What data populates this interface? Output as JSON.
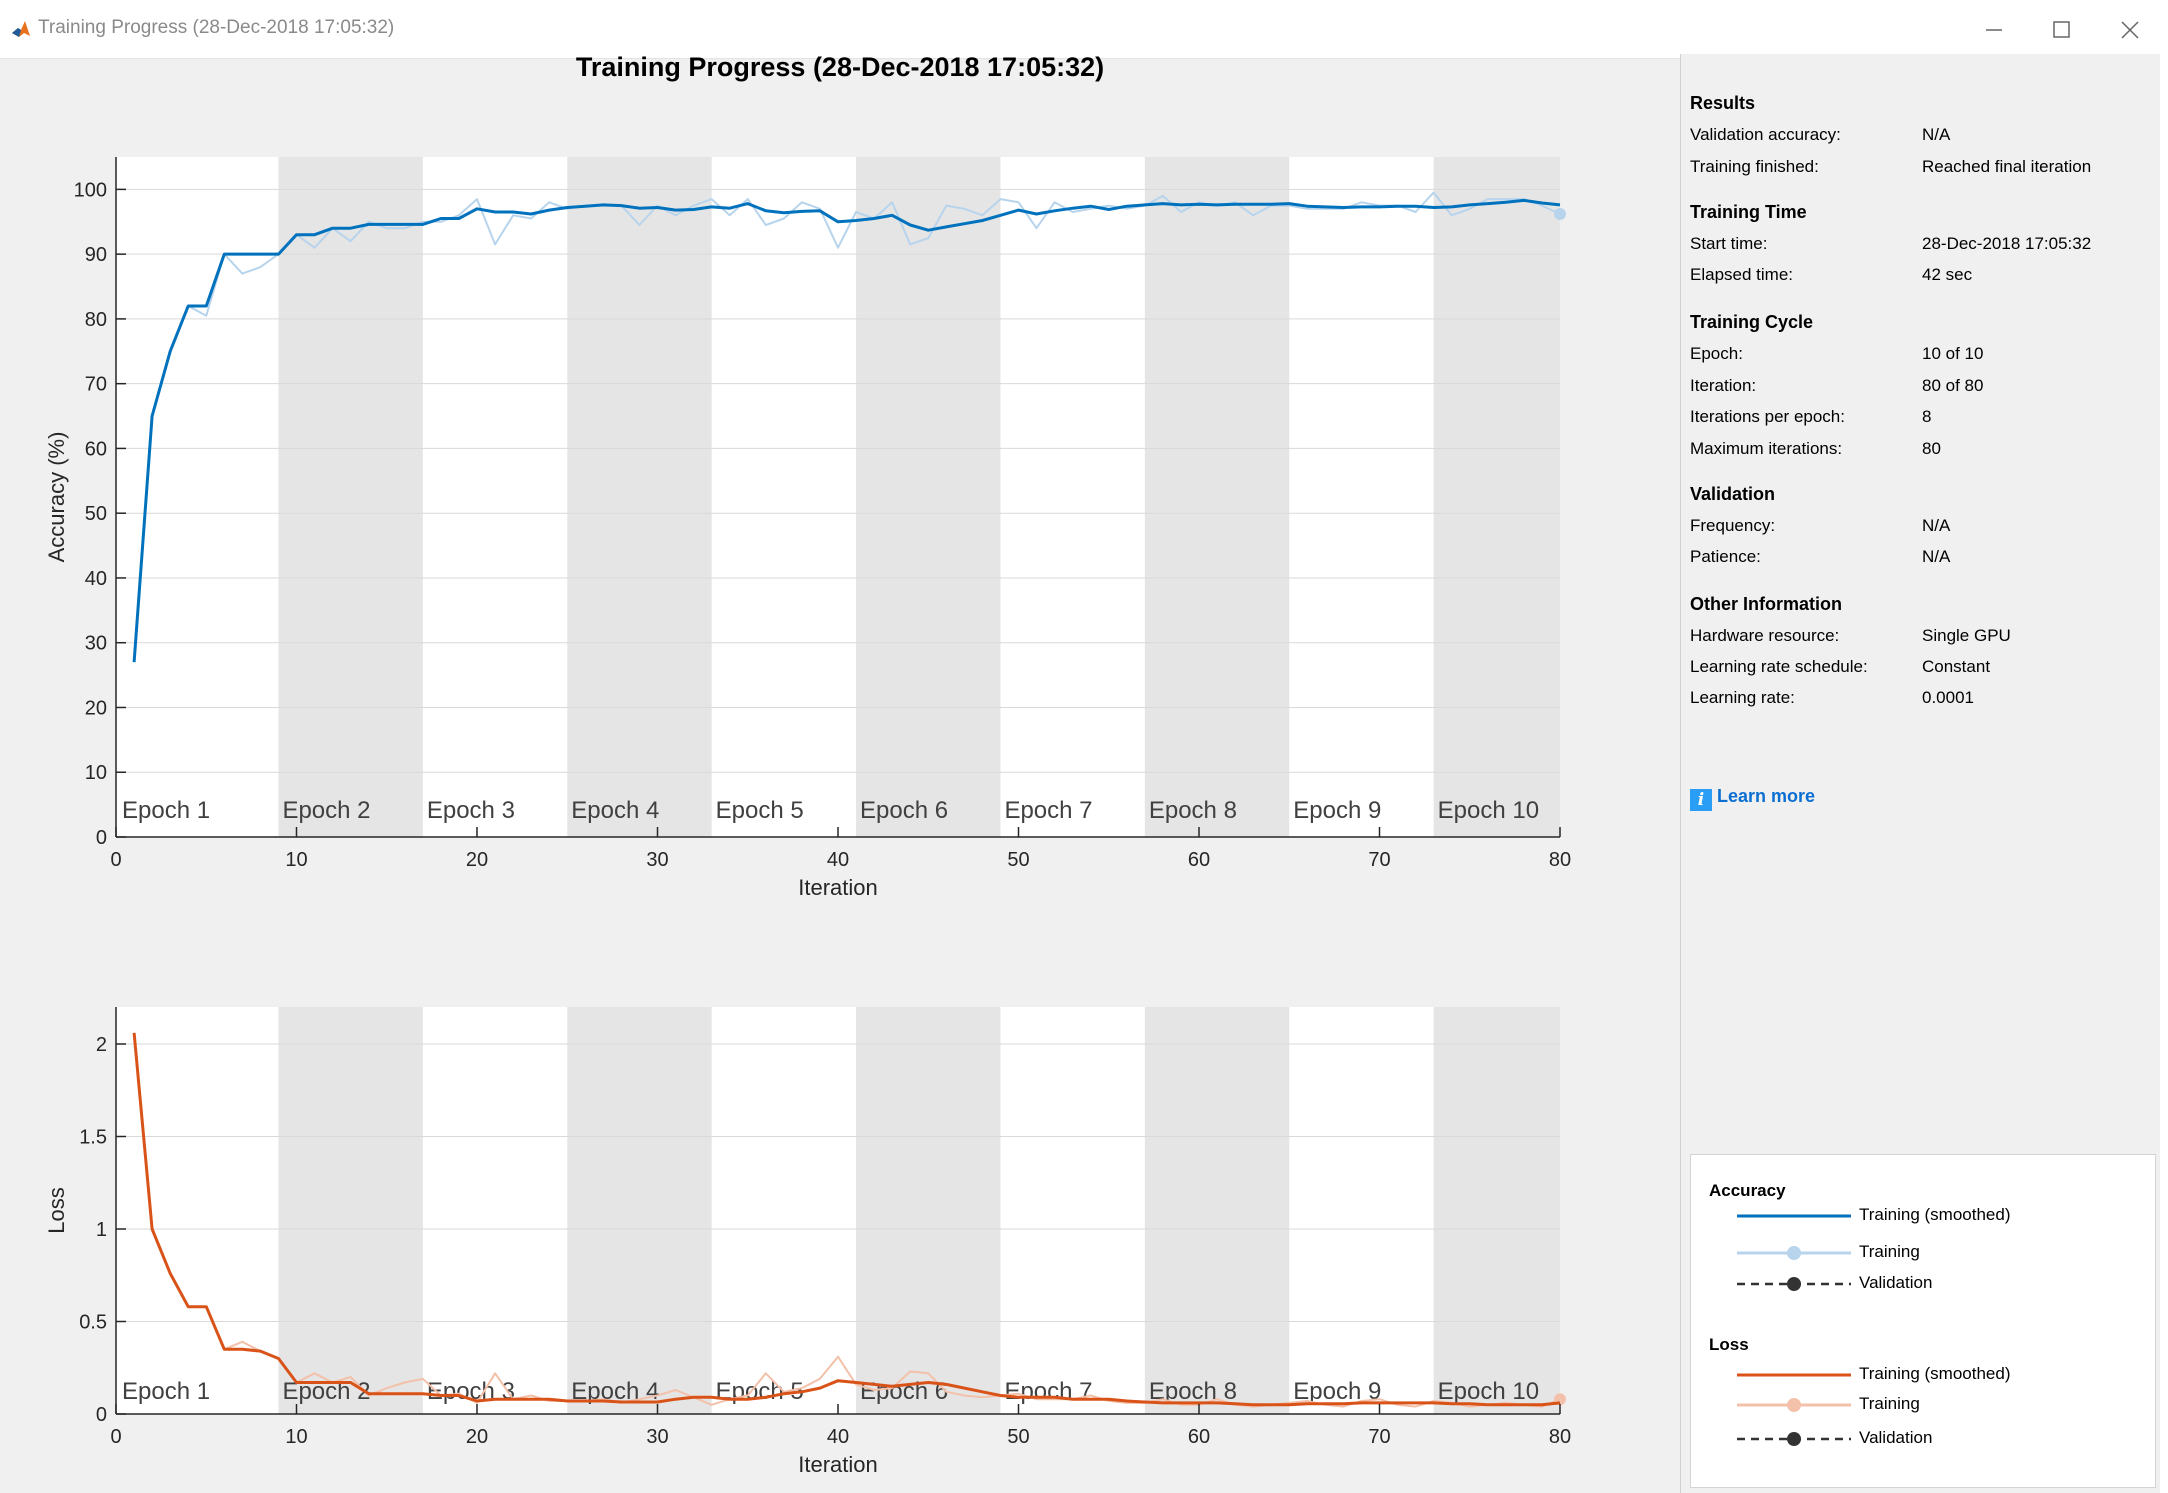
{
  "window": {
    "title": "Training Progress (28-Dec-2018 17:05:32)"
  },
  "plot_title": "Training Progress (28-Dec-2018 17:05:32)",
  "colors": {
    "accuracy_smoothed": "#0072bd",
    "accuracy_raw": "#b7d4ec",
    "loss_smoothed": "#d95319",
    "loss_raw": "#f3c1aa",
    "epoch_shade": "#e5e5e5",
    "link": "#0b6fd2"
  },
  "panel": {
    "results": {
      "title": "Results",
      "rows": [
        {
          "label": "Validation accuracy:",
          "value": "N/A"
        },
        {
          "label": "Training finished:",
          "value": "Reached final iteration"
        }
      ]
    },
    "training_time": {
      "title": "Training Time",
      "rows": [
        {
          "label": "Start time:",
          "value": "28-Dec-2018 17:05:32"
        },
        {
          "label": "Elapsed time:",
          "value": "42 sec"
        }
      ]
    },
    "training_cycle": {
      "title": "Training Cycle",
      "rows": [
        {
          "label": "Epoch:",
          "value": "10 of 10"
        },
        {
          "label": "Iteration:",
          "value": "80 of 80"
        },
        {
          "label": "Iterations per epoch:",
          "value": "8"
        },
        {
          "label": "Maximum iterations:",
          "value": "80"
        }
      ]
    },
    "validation": {
      "title": "Validation",
      "rows": [
        {
          "label": "Frequency:",
          "value": "N/A"
        },
        {
          "label": "Patience:",
          "value": "N/A"
        }
      ]
    },
    "other": {
      "title": "Other Information",
      "rows": [
        {
          "label": "Hardware resource:",
          "value": "Single GPU"
        },
        {
          "label": "Learning rate schedule:",
          "value": "Constant"
        },
        {
          "label": "Learning rate:",
          "value": "0.0001"
        }
      ]
    },
    "learn_more": "Learn more"
  },
  "legend": {
    "accuracy": {
      "title": "Accuracy",
      "items": [
        "Training (smoothed)",
        "Training",
        "Validation"
      ]
    },
    "loss": {
      "title": "Loss",
      "items": [
        "Training (smoothed)",
        "Training",
        "Validation"
      ]
    }
  },
  "chart_data": [
    {
      "type": "line",
      "title": "",
      "xlabel": "Iteration",
      "ylabel": "Accuracy (%)",
      "xlim": [
        0,
        80
      ],
      "ylim": [
        0,
        105
      ],
      "xticks": [
        0,
        10,
        20,
        30,
        40,
        50,
        60,
        70,
        80
      ],
      "yticks": [
        0,
        10,
        20,
        30,
        40,
        50,
        60,
        70,
        80,
        90,
        100
      ],
      "epochs": [
        {
          "label": "Epoch 1",
          "start": 0,
          "end": 9,
          "shaded": false
        },
        {
          "label": "Epoch 2",
          "start": 9,
          "end": 17,
          "shaded": true
        },
        {
          "label": "Epoch 3",
          "start": 17,
          "end": 25,
          "shaded": false
        },
        {
          "label": "Epoch 4",
          "start": 25,
          "end": 33,
          "shaded": true
        },
        {
          "label": "Epoch 5",
          "start": 33,
          "end": 41,
          "shaded": false
        },
        {
          "label": "Epoch 6",
          "start": 41,
          "end": 49,
          "shaded": true
        },
        {
          "label": "Epoch 7",
          "start": 49,
          "end": 57,
          "shaded": false
        },
        {
          "label": "Epoch 8",
          "start": 57,
          "end": 65,
          "shaded": true
        },
        {
          "label": "Epoch 9",
          "start": 65,
          "end": 73,
          "shaded": false
        },
        {
          "label": "Epoch 10",
          "start": 73,
          "end": 80,
          "shaded": true
        }
      ],
      "series": [
        {
          "name": "Training (smoothed)",
          "x": [
            1,
            2,
            3,
            4,
            5,
            6,
            7,
            8,
            9,
            10,
            11,
            12,
            13,
            14,
            15,
            16,
            17,
            18,
            19,
            20,
            21,
            22,
            23,
            24,
            25,
            26,
            27,
            28,
            29,
            30,
            31,
            32,
            33,
            34,
            35,
            36,
            37,
            38,
            39,
            40,
            41,
            42,
            43,
            44,
            45,
            46,
            47,
            48,
            49,
            50,
            51,
            52,
            53,
            54,
            55,
            56,
            57,
            58,
            59,
            60,
            61,
            62,
            63,
            64,
            65,
            66,
            67,
            68,
            69,
            70,
            71,
            72,
            73,
            74,
            75,
            76,
            77,
            78,
            79,
            80
          ],
          "y": [
            27,
            65,
            75,
            82,
            82,
            90,
            90,
            90,
            90,
            93,
            93,
            94,
            94,
            94.6,
            94.6,
            94.6,
            94.6,
            95.5,
            95.5,
            97,
            96.5,
            96.5,
            96.2,
            96.8,
            97.2,
            97.4,
            97.6,
            97.5,
            97.1,
            97.2,
            96.8,
            96.9,
            97.3,
            97.1,
            97.8,
            96.7,
            96.4,
            96.6,
            96.7,
            95,
            95.2,
            95.5,
            96,
            94.5,
            93.7,
            94.2,
            94.7,
            95.2,
            96,
            96.8,
            96.2,
            96.7,
            97.1,
            97.4,
            96.9,
            97.4,
            97.6,
            97.8,
            97.6,
            97.7,
            97.6,
            97.7,
            97.7,
            97.7,
            97.8,
            97.4,
            97.3,
            97.2,
            97.3,
            97.3,
            97.4,
            97.4,
            97.2,
            97.3,
            97.6,
            97.8,
            98,
            98.3,
            97.9,
            97.6
          ]
        },
        {
          "name": "Training",
          "x": [
            1,
            2,
            3,
            4,
            5,
            6,
            7,
            8,
            9,
            10,
            11,
            12,
            13,
            14,
            15,
            16,
            17,
            18,
            19,
            20,
            21,
            22,
            23,
            24,
            25,
            26,
            27,
            28,
            29,
            30,
            31,
            32,
            33,
            34,
            35,
            36,
            37,
            38,
            39,
            40,
            41,
            42,
            43,
            44,
            45,
            46,
            47,
            48,
            49,
            50,
            51,
            52,
            53,
            54,
            55,
            56,
            57,
            58,
            59,
            60,
            61,
            62,
            63,
            64,
            65,
            66,
            67,
            68,
            69,
            70,
            71,
            72,
            73,
            74,
            75,
            76,
            77,
            78,
            79,
            80
          ],
          "y": [
            27,
            65,
            75,
            82,
            80.5,
            90,
            87,
            88,
            90,
            93,
            91,
            94,
            92,
            95,
            94,
            94,
            95,
            95,
            96,
            98.5,
            91.5,
            96,
            95.5,
            98,
            97,
            97.5,
            97.5,
            97.5,
            94.5,
            97.5,
            96,
            97.5,
            98.5,
            96,
            98.5,
            94.5,
            95.5,
            98,
            97,
            91,
            96.5,
            95.5,
            98,
            91.5,
            92.5,
            97.5,
            97,
            96,
            98.5,
            98,
            94,
            98,
            96.5,
            97,
            97.5,
            97,
            97.5,
            99,
            96.5,
            98,
            97.5,
            98,
            96,
            97.5,
            97.5,
            97,
            97,
            97,
            98,
            97.5,
            97.5,
            96.5,
            99.5,
            96,
            97,
            98.5,
            98.5,
            98.5,
            97.5,
            96.2
          ]
        }
      ]
    },
    {
      "type": "line",
      "title": "",
      "xlabel": "Iteration",
      "ylabel": "Loss",
      "xlim": [
        0,
        80
      ],
      "ylim": [
        0,
        2.2
      ],
      "xticks": [
        0,
        10,
        20,
        30,
        40,
        50,
        60,
        70,
        80
      ],
      "yticks": [
        0,
        0.5,
        1,
        1.5,
        2
      ],
      "epochs": [
        {
          "label": "Epoch 1",
          "start": 0,
          "end": 9,
          "shaded": false
        },
        {
          "label": "Epoch 2",
          "start": 9,
          "end": 17,
          "shaded": true
        },
        {
          "label": "Epoch 3",
          "start": 17,
          "end": 25,
          "shaded": false
        },
        {
          "label": "Epoch 4",
          "start": 25,
          "end": 33,
          "shaded": true
        },
        {
          "label": "Epoch 5",
          "start": 33,
          "end": 41,
          "shaded": false
        },
        {
          "label": "Epoch 6",
          "start": 41,
          "end": 49,
          "shaded": true
        },
        {
          "label": "Epoch 7",
          "start": 49,
          "end": 57,
          "shaded": false
        },
        {
          "label": "Epoch 8",
          "start": 57,
          "end": 65,
          "shaded": true
        },
        {
          "label": "Epoch 9",
          "start": 65,
          "end": 73,
          "shaded": false
        },
        {
          "label": "Epoch 10",
          "start": 73,
          "end": 80,
          "shaded": true
        }
      ],
      "series": [
        {
          "name": "Training (smoothed)",
          "x": [
            1,
            2,
            3,
            4,
            5,
            6,
            7,
            8,
            9,
            10,
            11,
            12,
            13,
            14,
            15,
            16,
            17,
            18,
            19,
            20,
            21,
            22,
            23,
            24,
            25,
            26,
            27,
            28,
            29,
            30,
            31,
            32,
            33,
            34,
            35,
            36,
            37,
            38,
            39,
            40,
            41,
            42,
            43,
            44,
            45,
            46,
            47,
            48,
            49,
            50,
            51,
            52,
            53,
            54,
            55,
            56,
            57,
            58,
            59,
            60,
            61,
            62,
            63,
            64,
            65,
            66,
            67,
            68,
            69,
            70,
            71,
            72,
            73,
            74,
            75,
            76,
            77,
            78,
            79,
            80
          ],
          "y": [
            2.06,
            1.0,
            0.76,
            0.58,
            0.58,
            0.35,
            0.35,
            0.34,
            0.3,
            0.17,
            0.17,
            0.17,
            0.17,
            0.11,
            0.11,
            0.11,
            0.11,
            0.1,
            0.1,
            0.07,
            0.08,
            0.08,
            0.08,
            0.08,
            0.07,
            0.07,
            0.07,
            0.065,
            0.065,
            0.065,
            0.08,
            0.09,
            0.09,
            0.08,
            0.08,
            0.09,
            0.11,
            0.12,
            0.14,
            0.18,
            0.17,
            0.16,
            0.15,
            0.16,
            0.17,
            0.16,
            0.14,
            0.12,
            0.1,
            0.09,
            0.09,
            0.09,
            0.08,
            0.08,
            0.08,
            0.07,
            0.065,
            0.06,
            0.06,
            0.06,
            0.06,
            0.055,
            0.05,
            0.05,
            0.05,
            0.055,
            0.055,
            0.055,
            0.06,
            0.06,
            0.06,
            0.06,
            0.06,
            0.055,
            0.055,
            0.05,
            0.05,
            0.05,
            0.05,
            0.06
          ]
        },
        {
          "name": "Training",
          "x": [
            1,
            2,
            3,
            4,
            5,
            6,
            7,
            8,
            9,
            10,
            11,
            12,
            13,
            14,
            15,
            16,
            17,
            18,
            19,
            20,
            21,
            22,
            23,
            24,
            25,
            26,
            27,
            28,
            29,
            30,
            31,
            32,
            33,
            34,
            35,
            36,
            37,
            38,
            39,
            40,
            41,
            42,
            43,
            44,
            45,
            46,
            47,
            48,
            49,
            50,
            51,
            52,
            53,
            54,
            55,
            56,
            57,
            58,
            59,
            60,
            61,
            62,
            63,
            64,
            65,
            66,
            67,
            68,
            69,
            70,
            71,
            72,
            73,
            74,
            75,
            76,
            77,
            78,
            79,
            80
          ],
          "y": [
            2.06,
            1.0,
            0.76,
            0.58,
            0.58,
            0.35,
            0.39,
            0.34,
            0.3,
            0.17,
            0.22,
            0.17,
            0.2,
            0.1,
            0.14,
            0.17,
            0.19,
            0.1,
            0.11,
            0.06,
            0.22,
            0.08,
            0.1,
            0.07,
            0.07,
            0.07,
            0.08,
            0.06,
            0.08,
            0.1,
            0.13,
            0.09,
            0.05,
            0.08,
            0.1,
            0.22,
            0.12,
            0.14,
            0.19,
            0.31,
            0.16,
            0.13,
            0.14,
            0.23,
            0.22,
            0.12,
            0.1,
            0.09,
            0.1,
            0.11,
            0.08,
            0.08,
            0.08,
            0.1,
            0.07,
            0.06,
            0.06,
            0.08,
            0.05,
            0.05,
            0.08,
            0.05,
            0.04,
            0.05,
            0.06,
            0.07,
            0.05,
            0.04,
            0.07,
            0.08,
            0.05,
            0.04,
            0.07,
            0.06,
            0.04,
            0.05,
            0.06,
            0.05,
            0.04,
            0.08
          ]
        }
      ]
    }
  ]
}
